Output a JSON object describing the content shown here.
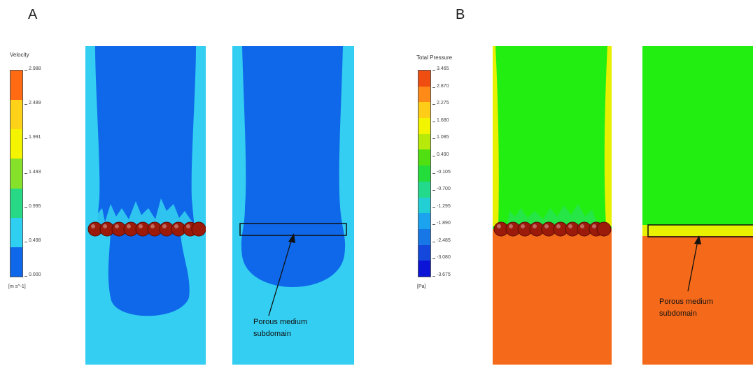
{
  "panel_a": {
    "label": "A",
    "legend": {
      "title": "Velocity",
      "unit": "[m s^-1]",
      "ticks": [
        "2.988",
        "2.489",
        "1.991",
        "1.493",
        "0.995",
        "0.498",
        "0.000"
      ],
      "colors": [
        "#ff6a13",
        "#ffd21a",
        "#f4f400",
        "#86e12a",
        "#27d985",
        "#2ecff0",
        "#0f68ea"
      ]
    },
    "annotation": [
      "Porous medium",
      "subdomain"
    ]
  },
  "panel_b": {
    "label": "B",
    "legend": {
      "title": "Total Pressure",
      "unit": "[Pa]",
      "ticks": [
        "3.465",
        "2.870",
        "2.275",
        "1.680",
        "1.085",
        "0.490",
        "-0.105",
        "-0.700",
        "-1.295",
        "-1.890",
        "-2.485",
        "-3.080",
        "-3.675"
      ],
      "colors": [
        "#f04e10",
        "#ff8a18",
        "#ffcd18",
        "#f2f400",
        "#b7ea0a",
        "#50e012",
        "#22dd3a",
        "#22d98c",
        "#22cfd5",
        "#1ca3f0",
        "#1877e6",
        "#1448dc",
        "#0b14d6"
      ]
    },
    "annotation": [
      "Porous medium",
      "subdomain"
    ]
  },
  "colors": {
    "velocity_light": "#33cef1",
    "velocity_dark": "#0f68ea",
    "pressure_high": "#f56a1a",
    "pressure_mid": "#22ee12",
    "pressure_edge": "#e8f000",
    "particle": "#9b1a0a"
  }
}
